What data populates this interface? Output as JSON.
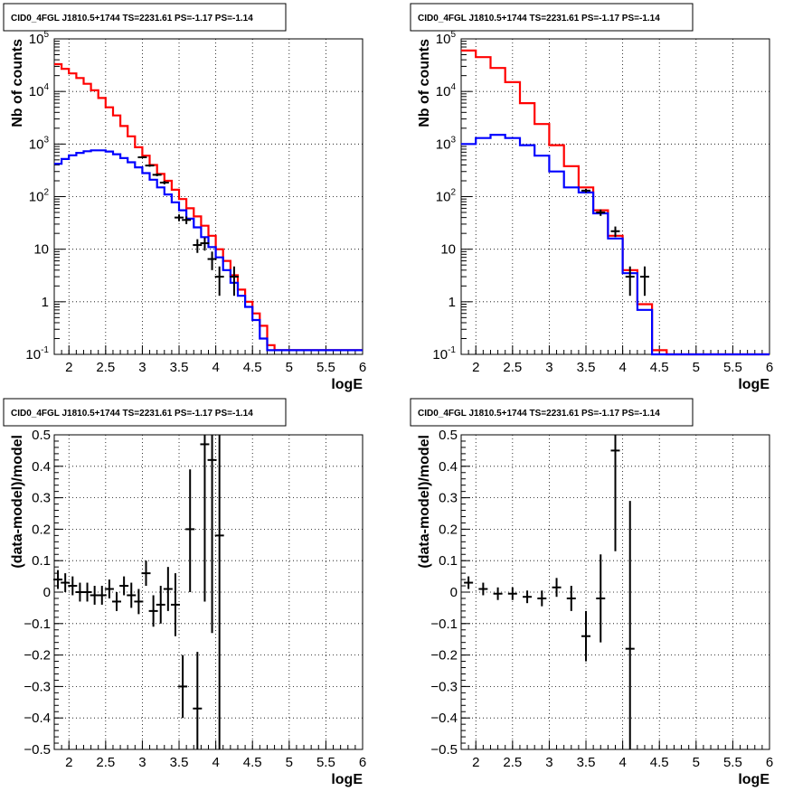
{
  "chart_data": [
    {
      "type": "line",
      "title": "CID0_4FGL J1810.5+1744 TS=2231.61 PS=-1.17 PS=-1.14",
      "xlabel": "logE",
      "ylabel": "Nb of counts",
      "xlim": [
        1.8,
        6.0
      ],
      "ylim": [
        0.1,
        100000
      ],
      "yscale": "log",
      "grid": true,
      "xticks": [
        "2",
        "2.5",
        "3",
        "3.5",
        "4",
        "4.5",
        "5",
        "5.5",
        "6"
      ],
      "yticks": [
        "10^-1",
        "1",
        "10",
        "10^2",
        "10^3",
        "10^4",
        "10^5"
      ],
      "series": [
        {
          "kind": "step",
          "color": "#ff0000",
          "x": [
            1.8,
            1.9,
            2.0,
            2.1,
            2.2,
            2.3,
            2.4,
            2.5,
            2.6,
            2.7,
            2.8,
            2.9,
            3.0,
            3.1,
            3.2,
            3.3,
            3.4,
            3.5,
            3.6,
            3.7,
            3.8,
            3.9,
            4.0,
            4.1,
            4.2,
            4.3,
            4.4,
            4.5,
            4.6,
            4.7,
            4.8,
            4.9,
            5.0,
            5.1,
            5.2,
            5.3,
            5.4,
            5.5,
            5.6,
            5.7,
            5.8,
            5.9
          ],
          "values": [
            33000,
            27000,
            22000,
            18000,
            14000,
            10500,
            7500,
            5000,
            3500,
            2200,
            1400,
            870,
            600,
            400,
            270,
            200,
            135,
            90,
            60,
            42,
            28,
            18,
            10,
            6,
            3.2,
            1.7,
            1.0,
            0.6,
            0.35,
            0.15,
            0.12,
            0.12,
            0.12,
            0.12,
            0.12,
            0.12,
            0.12,
            0.12,
            0.12,
            0.12,
            0.12,
            0.12
          ]
        },
        {
          "kind": "step",
          "color": "#0000ff",
          "x": [
            1.8,
            1.9,
            2.0,
            2.1,
            2.2,
            2.3,
            2.4,
            2.5,
            2.6,
            2.7,
            2.8,
            2.9,
            3.0,
            3.1,
            3.2,
            3.3,
            3.4,
            3.5,
            3.6,
            3.7,
            3.8,
            3.9,
            4.0,
            4.1,
            4.2,
            4.3,
            4.4,
            4.5,
            4.6,
            4.7,
            4.8,
            4.9,
            5.0,
            5.1,
            5.2,
            5.3,
            5.4,
            5.5,
            5.6,
            5.7,
            5.8,
            5.9
          ],
          "values": [
            420,
            520,
            610,
            680,
            730,
            760,
            760,
            720,
            640,
            540,
            450,
            360,
            280,
            210,
            150,
            110,
            78,
            55,
            38,
            26,
            17,
            11,
            7,
            4,
            2.3,
            1.3,
            0.8,
            0.45,
            0.2,
            0.12,
            0.12,
            0.12,
            0.12,
            0.12,
            0.12,
            0.12,
            0.12,
            0.12,
            0.12,
            0.12,
            0.12,
            0.12
          ]
        },
        {
          "kind": "points",
          "color": "#000000",
          "x": [
            3.0,
            3.1,
            3.2,
            3.3,
            3.5,
            3.6,
            3.75,
            3.85,
            3.95,
            4.05,
            4.25
          ],
          "values": [
            560,
            390,
            260,
            185,
            40,
            36,
            12,
            13,
            6.5,
            3,
            3
          ],
          "err_low": [
            24,
            20,
            16,
            14,
            6,
            6,
            3.5,
            3.6,
            2.5,
            1.7,
            1.7
          ],
          "err_high": [
            24,
            20,
            16,
            14,
            6,
            6,
            3.5,
            3.6,
            2.5,
            1.7,
            1.7
          ]
        }
      ]
    },
    {
      "type": "line",
      "title": "CID0_4FGL J1810.5+1744 TS=2231.61 PS=-1.17 PS=-1.14",
      "xlabel": "logE",
      "ylabel": "Nb of counts",
      "xlim": [
        1.8,
        6.0
      ],
      "ylim": [
        0.1,
        100000
      ],
      "yscale": "log",
      "grid": true,
      "xticks": [
        "2",
        "2.5",
        "3",
        "3.5",
        "4",
        "4.5",
        "5",
        "5.5",
        "6"
      ],
      "yticks": [
        "10^-1",
        "1",
        "10",
        "10^2",
        "10^3",
        "10^4",
        "10^5"
      ],
      "series": [
        {
          "kind": "step",
          "color": "#ff0000",
          "x": [
            1.8,
            2.0,
            2.2,
            2.4,
            2.6,
            2.8,
            3.0,
            3.2,
            3.4,
            3.6,
            3.8,
            4.0,
            4.2,
            4.4,
            4.6,
            4.8,
            5.0,
            5.2,
            5.4,
            5.6,
            5.8
          ],
          "values": [
            60000,
            45000,
            28000,
            15000,
            6000,
            2400,
            950,
            380,
            150,
            55,
            18,
            4,
            0.9,
            0.12,
            0.1,
            0.1,
            0.1,
            0.1,
            0.1,
            0.1,
            0.1
          ]
        },
        {
          "kind": "step",
          "color": "#0000ff",
          "x": [
            1.8,
            2.0,
            2.2,
            2.4,
            2.6,
            2.8,
            3.0,
            3.2,
            3.4,
            3.6,
            3.8,
            4.0,
            4.2,
            4.4,
            4.6,
            4.8,
            5.0,
            5.2,
            5.4,
            5.6,
            5.8
          ],
          "values": [
            1000,
            1300,
            1500,
            1300,
            950,
            600,
            300,
            150,
            120,
            48,
            16,
            3.5,
            0.7,
            0.1,
            0.1,
            0.1,
            0.1,
            0.1,
            0.1,
            0.1,
            0.1
          ]
        },
        {
          "kind": "points",
          "color": "#000000",
          "x": [
            3.5,
            3.7,
            3.9,
            4.1,
            4.3
          ],
          "values": [
            130,
            50,
            22,
            3,
            3
          ],
          "err_low": [
            11,
            7,
            5,
            1.7,
            1.7
          ],
          "err_high": [
            11,
            7,
            5,
            1.7,
            1.7
          ]
        }
      ]
    },
    {
      "type": "scatter",
      "title": "CID0_4FGL J1810.5+1744 TS=2231.61 PS=-1.17 PS=-1.14",
      "xlabel": "logE",
      "ylabel": "(data-model)/model",
      "xlim": [
        1.8,
        6.0
      ],
      "ylim": [
        -0.5,
        0.5
      ],
      "grid": true,
      "xticks": [
        "2",
        "2.5",
        "3",
        "3.5",
        "4",
        "4.5",
        "5",
        "5.5",
        "6"
      ],
      "yticks": [
        "−0.5",
        "−0.4",
        "−0.3",
        "−0.2",
        "−0.1",
        "0",
        "0.1",
        "0.2",
        "0.3",
        "0.4",
        "0.5"
      ],
      "series": [
        {
          "kind": "points",
          "color": "#000000",
          "x": [
            1.85,
            1.95,
            2.05,
            2.15,
            2.25,
            2.35,
            2.45,
            2.55,
            2.65,
            2.75,
            2.85,
            2.95,
            3.05,
            3.15,
            3.25,
            3.35,
            3.45,
            3.55,
            3.65,
            3.75,
            3.85,
            3.95,
            4.05
          ],
          "values": [
            0.04,
            0.03,
            0.02,
            0.0,
            0.0,
            -0.01,
            -0.01,
            0.01,
            -0.03,
            0.02,
            -0.01,
            -0.03,
            0.06,
            -0.06,
            -0.04,
            0.01,
            -0.04,
            -0.3,
            0.2,
            -0.37,
            0.47,
            0.42,
            0.18
          ],
          "err_low": [
            0.03,
            0.03,
            0.03,
            0.03,
            0.03,
            0.03,
            0.03,
            0.03,
            0.03,
            0.03,
            0.04,
            0.04,
            0.04,
            0.05,
            0.06,
            0.07,
            0.1,
            0.1,
            0.2,
            0.18,
            0.5,
            0.55,
            0.7
          ],
          "err_high": [
            0.03,
            0.03,
            0.03,
            0.03,
            0.03,
            0.03,
            0.03,
            0.03,
            0.03,
            0.03,
            0.04,
            0.04,
            0.04,
            0.05,
            0.06,
            0.07,
            0.1,
            0.1,
            0.19,
            0.18,
            0.5,
            0.55,
            0.7
          ]
        }
      ]
    },
    {
      "type": "scatter",
      "title": "CID0_4FGL J1810.5+1744 TS=2231.61 PS=-1.17 PS=-1.14",
      "xlabel": "logE",
      "ylabel": "(data-model)/model",
      "xlim": [
        1.8,
        6.0
      ],
      "ylim": [
        -0.5,
        0.5
      ],
      "grid": true,
      "xticks": [
        "2",
        "2.5",
        "3",
        "3.5",
        "4",
        "4.5",
        "5",
        "5.5",
        "6"
      ],
      "yticks": [
        "−0.5",
        "−0.4",
        "−0.3",
        "−0.2",
        "−0.1",
        "0",
        "0.1",
        "0.2",
        "0.3",
        "0.4",
        "0.5"
      ],
      "series": [
        {
          "kind": "points",
          "color": "#000000",
          "x": [
            1.9,
            2.1,
            2.3,
            2.5,
            2.7,
            2.9,
            3.1,
            3.3,
            3.5,
            3.7,
            3.9,
            4.1
          ],
          "values": [
            0.03,
            0.01,
            -0.005,
            -0.005,
            -0.015,
            -0.02,
            0.015,
            -0.02,
            -0.14,
            -0.02,
            0.45,
            -0.18
          ],
          "err_low": [
            0.02,
            0.02,
            0.02,
            0.02,
            0.02,
            0.025,
            0.03,
            0.04,
            0.08,
            0.14,
            0.32,
            0.48
          ],
          "err_high": [
            0.02,
            0.02,
            0.02,
            0.02,
            0.02,
            0.025,
            0.03,
            0.04,
            0.08,
            0.14,
            0.32,
            0.47
          ]
        }
      ]
    }
  ]
}
